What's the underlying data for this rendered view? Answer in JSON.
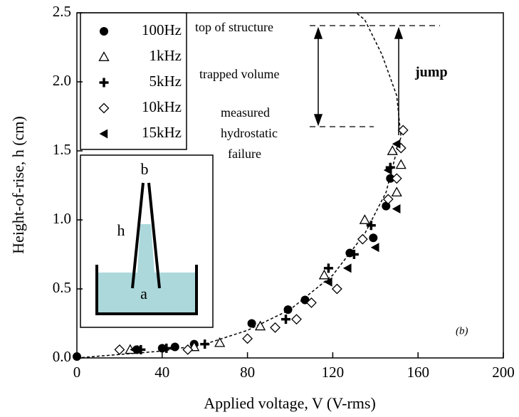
{
  "chart_data": {
    "type": "scatter",
    "x_label": "Applied voltage, V (V-rms)",
    "y_label": "Height-of-rise, h (cm)",
    "xlim": [
      0,
      200
    ],
    "xticks": [
      0,
      40,
      80,
      120,
      160,
      200
    ],
    "ylim": [
      0,
      2.5
    ],
    "yticks": [
      {
        "value": 0,
        "label": "0.0"
      },
      {
        "value": 0.5,
        "label": "0.5"
      },
      {
        "value": 1,
        "label": "1.0"
      },
      {
        "value": 1.5,
        "label": "1.5"
      },
      {
        "value": 2,
        "label": "2.0"
      },
      {
        "value": 2.5,
        "label": "2.5"
      }
    ],
    "series": [
      {
        "name": "100Hz",
        "marker": "circle",
        "color": "#000000",
        "x": [
          0,
          28,
          40,
          46,
          55,
          82,
          99,
          107,
          128,
          139,
          145,
          147
        ],
        "values": [
          0.01,
          0.06,
          0.07,
          0.08,
          0.1,
          0.25,
          0.35,
          0.42,
          0.76,
          0.87,
          1.1,
          1.3
        ]
      },
      {
        "name": "1kHz",
        "marker": "triangle",
        "color": "#000000",
        "x": [
          25,
          55,
          67,
          86,
          116,
          135,
          150,
          152,
          148
        ],
        "values": [
          0.06,
          0.08,
          0.11,
          0.23,
          0.6,
          1.0,
          1.2,
          1.4,
          1.5
        ]
      },
      {
        "name": "5kHz",
        "marker": "plus",
        "color": "#000000",
        "x": [
          30,
          42,
          60,
          98,
          118,
          130,
          138,
          147
        ],
        "values": [
          0.06,
          0.07,
          0.1,
          0.28,
          0.65,
          0.75,
          0.96,
          1.38
        ]
      },
      {
        "name": "10kHz",
        "marker": "diamond",
        "color": "#000000",
        "x": [
          20,
          52,
          80,
          93,
          103,
          110,
          122,
          134,
          146,
          150,
          152,
          153
        ],
        "values": [
          0.06,
          0.06,
          0.14,
          0.22,
          0.28,
          0.4,
          0.5,
          0.86,
          1.15,
          1.3,
          1.52,
          1.65
        ]
      },
      {
        "name": "15kHz",
        "marker": "left-triangle",
        "color": "#000000",
        "x": [
          27,
          118,
          127,
          140,
          150,
          150,
          146
        ],
        "values": [
          0.06,
          0.55,
          0.65,
          0.8,
          1.08,
          1.55,
          1.36
        ]
      }
    ],
    "curve": {
      "x": [
        0,
        40,
        60,
        80,
        100,
        120,
        135,
        145,
        150,
        152,
        150,
        143,
        135,
        131
      ],
      "y": [
        0,
        0.05,
        0.1,
        0.2,
        0.35,
        0.6,
        0.9,
        1.2,
        1.5,
        1.6,
        1.9,
        2.2,
        2.45,
        2.5
      ]
    },
    "annotations": {
      "top": "top of structure",
      "trapped": "trapped volume",
      "failure": [
        "measured",
        "hydrostatic",
        "failure"
      ],
      "jump": "jump",
      "panel": "(b)"
    },
    "inset_labels": {
      "b": "b",
      "h": "h",
      "a": "a"
    }
  }
}
